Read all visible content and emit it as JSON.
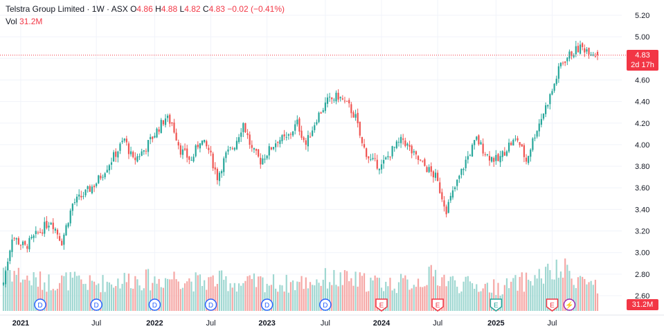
{
  "header": {
    "symbol_line": "Telstra Group Limited · 1W · ASX",
    "o_label": "O",
    "o_value": "4.86",
    "h_label": "H",
    "h_value": "4.88",
    "l_label": "L",
    "l_value": "4.82",
    "c_label": "C",
    "c_value": "4.83",
    "change": "−0.02 (−0.41%)",
    "vol_label": "Vol",
    "vol_value": "31.2M"
  },
  "price_tag": {
    "price": "4.83",
    "countdown": "2d 17h"
  },
  "volume_tag": "31.2M",
  "colors": {
    "up": "#26a69a",
    "down": "#ef5350",
    "up_vol": "#9fd7d1",
    "down_vol": "#f5a7a5",
    "accent_red": "#f23645",
    "grid": "#f0f3fa",
    "dividend": "#2962ff",
    "earnings": "#f23645",
    "earnings_green": "#26a69a",
    "split": "#9c27b0"
  },
  "chart_data": {
    "type": "candlestick",
    "title": "Telstra Group Limited · 1W · ASX",
    "ylim": [
      2.5,
      5.26
    ],
    "y_ticks": [
      "5.20",
      "5.00",
      "4.80",
      "4.60",
      "4.40",
      "4.20",
      "4.00",
      "3.80",
      "3.60",
      "3.40",
      "3.20",
      "3.00",
      "2.80",
      "2.60"
    ],
    "x_ticks": [
      "2021",
      "Jul",
      "2022",
      "Jul",
      "2023",
      "Jul",
      "2024",
      "Jul",
      "2025",
      "Jul"
    ],
    "close_path": [
      [
        0,
        2.72
      ],
      [
        4,
        3.15
      ],
      [
        10,
        3.05
      ],
      [
        16,
        3.18
      ],
      [
        22,
        3.3
      ],
      [
        27,
        3.1
      ],
      [
        32,
        3.45
      ],
      [
        38,
        3.55
      ],
      [
        43,
        3.65
      ],
      [
        48,
        3.8
      ],
      [
        53,
        3.95
      ],
      [
        56,
        4.05
      ],
      [
        60,
        3.85
      ],
      [
        65,
        3.95
      ],
      [
        70,
        4.1
      ],
      [
        75,
        4.25
      ],
      [
        78,
        4.2
      ],
      [
        82,
        3.95
      ],
      [
        87,
        3.85
      ],
      [
        91,
        4.05
      ],
      [
        95,
        3.95
      ],
      [
        99,
        3.7
      ],
      [
        103,
        3.9
      ],
      [
        107,
        4.0
      ],
      [
        111,
        4.2
      ],
      [
        115,
        3.95
      ],
      [
        119,
        3.85
      ],
      [
        123,
        3.95
      ],
      [
        127,
        4.05
      ],
      [
        131,
        4.05
      ],
      [
        136,
        4.2
      ],
      [
        140,
        4.0
      ],
      [
        145,
        4.25
      ],
      [
        150,
        4.4
      ],
      [
        155,
        4.45
      ],
      [
        160,
        4.35
      ],
      [
        163,
        4.25
      ],
      [
        166,
        4.0
      ],
      [
        170,
        3.85
      ],
      [
        175,
        3.8
      ],
      [
        180,
        3.95
      ],
      [
        185,
        4.05
      ],
      [
        190,
        3.9
      ],
      [
        195,
        3.8
      ],
      [
        200,
        3.7
      ],
      [
        205,
        3.4
      ],
      [
        210,
        3.65
      ],
      [
        214,
        3.85
      ],
      [
        219,
        4.05
      ],
      [
        224,
        3.9
      ],
      [
        229,
        3.85
      ],
      [
        234,
        4.0
      ],
      [
        238,
        4.05
      ],
      [
        242,
        3.85
      ],
      [
        246,
        4.1
      ],
      [
        250,
        4.3
      ],
      [
        254,
        4.5
      ],
      [
        258,
        4.75
      ],
      [
        263,
        4.85
      ],
      [
        267,
        4.9
      ],
      [
        271,
        4.88
      ],
      [
        275,
        4.83
      ]
    ],
    "volume_path": [
      [
        0,
        2.5
      ],
      [
        10,
        1.8
      ],
      [
        20,
        1.6
      ],
      [
        30,
        1.7
      ],
      [
        40,
        1.5
      ],
      [
        50,
        1.6
      ],
      [
        60,
        1.8
      ],
      [
        70,
        1.7
      ],
      [
        80,
        1.9
      ],
      [
        90,
        1.6
      ],
      [
        100,
        1.7
      ],
      [
        110,
        1.5
      ],
      [
        120,
        1.6
      ],
      [
        130,
        1.5
      ],
      [
        140,
        1.6
      ],
      [
        150,
        1.8
      ],
      [
        160,
        1.7
      ],
      [
        170,
        1.6
      ],
      [
        180,
        1.5
      ],
      [
        190,
        1.6
      ],
      [
        200,
        2.0
      ],
      [
        210,
        1.5
      ],
      [
        220,
        1.4
      ],
      [
        230,
        1.3
      ],
      [
        240,
        1.6
      ],
      [
        250,
        2.0
      ],
      [
        260,
        2.2
      ],
      [
        270,
        1.6
      ],
      [
        275,
        1.4
      ]
    ],
    "events": [
      {
        "label": "D",
        "type": "dividend",
        "bar": 17
      },
      {
        "label": "D",
        "type": "dividend",
        "bar": 43
      },
      {
        "label": "D",
        "type": "dividend",
        "bar": 70
      },
      {
        "label": "D",
        "type": "dividend",
        "bar": 96
      },
      {
        "label": "D",
        "type": "dividend",
        "bar": 122
      },
      {
        "label": "D",
        "type": "dividend",
        "bar": 149
      },
      {
        "label": "E",
        "type": "earnings",
        "bar": 175
      },
      {
        "label": "E",
        "type": "earnings",
        "bar": 201
      },
      {
        "label": "E",
        "type": "earnings-green",
        "bar": 228
      },
      {
        "label": "E",
        "type": "earnings",
        "bar": 254
      },
      {
        "label": "⚡",
        "type": "split",
        "bar": 262
      }
    ],
    "last_price": 4.83
  }
}
